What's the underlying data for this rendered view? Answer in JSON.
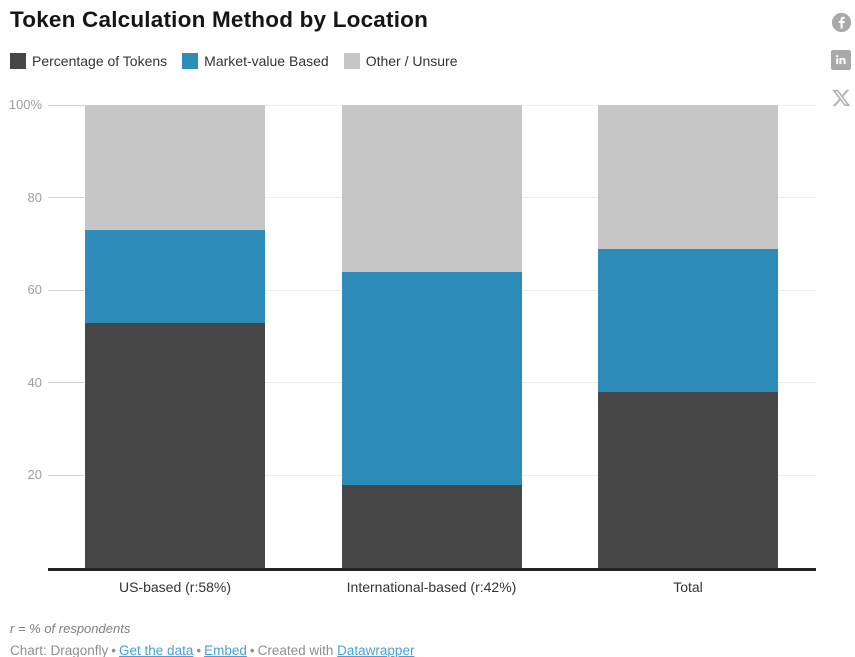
{
  "title": "Token Calculation Method by Location",
  "share_icons": [
    "facebook",
    "linkedin",
    "x"
  ],
  "chart_data": {
    "type": "bar",
    "stacked": true,
    "title": "Token Calculation Method by Location",
    "categories": [
      "US-based (r:58%)",
      "International-based (r:42%)",
      "Total"
    ],
    "series": [
      {
        "name": "Percentage of Tokens",
        "color": "#474747",
        "values": [
          53,
          18,
          38
        ]
      },
      {
        "name": "Market-value Based",
        "color": "#2e8cb8",
        "values": [
          20,
          46,
          31
        ]
      },
      {
        "name": "Other / Unsure",
        "color": "#c6c6c6",
        "values": [
          27,
          36,
          31
        ]
      }
    ],
    "ylim": [
      0,
      100
    ],
    "yticks": [
      {
        "value": 20,
        "label": "20"
      },
      {
        "value": 40,
        "label": "40"
      },
      {
        "value": 60,
        "label": "60"
      },
      {
        "value": 80,
        "label": "80"
      },
      {
        "value": 100,
        "label": "100%"
      }
    ],
    "grid": true,
    "legend_position": "top",
    "unit": "%"
  },
  "footer": {
    "note": "r = % of respondents",
    "attribution": {
      "chart_by": "Chart: Dragonfly",
      "separator": "•",
      "link_get_data": "Get the data",
      "link_embed": "Embed",
      "created_with": "Created with",
      "link_creator": "Datawrapper"
    }
  }
}
